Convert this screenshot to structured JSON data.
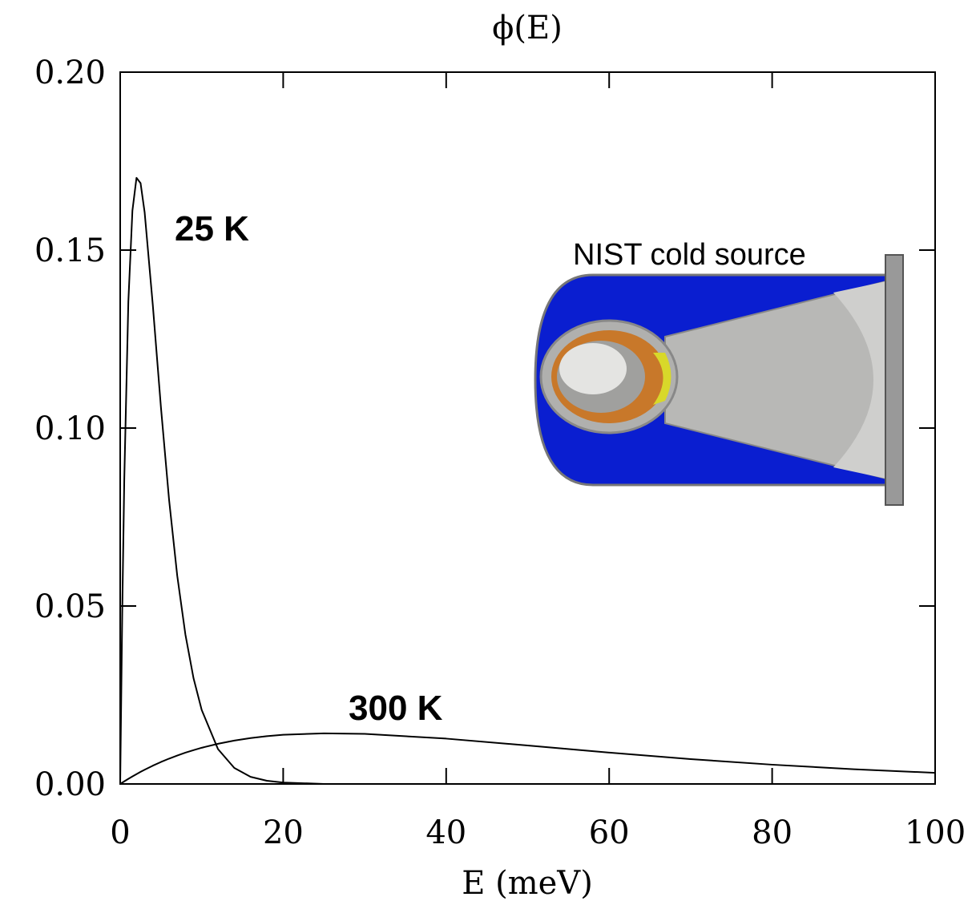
{
  "chart_data": {
    "type": "line",
    "title": "ϕ(E)",
    "x_label": "E (meV)",
    "x": [
      0,
      0.25,
      0.5,
      1,
      1.5,
      2,
      2.5,
      3,
      4,
      5,
      6,
      7,
      8,
      9,
      10,
      12,
      14,
      16,
      18,
      20,
      25,
      30,
      40,
      50,
      60,
      70,
      80,
      90,
      100
    ],
    "series": [
      {
        "name": "25 K",
        "color": "#000000",
        "values": [
          0,
          0.048,
          0.0855,
          0.1355,
          0.1611,
          0.1703,
          0.1688,
          0.1606,
          0.1346,
          0.1058,
          0.0798,
          0.0585,
          0.042,
          0.0297,
          0.0208,
          0.0098,
          0.0045,
          0.002,
          0.0009,
          0.0004,
          0.0,
          0,
          0,
          0,
          0,
          0,
          0,
          0,
          0
        ]
      },
      {
        "name": "300 K",
        "color": "#000000",
        "values": [
          0,
          0.00037,
          0.00073,
          0.00144,
          0.00212,
          0.00277,
          0.0034,
          0.004,
          0.00513,
          0.00617,
          0.00712,
          0.00799,
          0.00879,
          0.00951,
          0.01017,
          0.01129,
          0.01219,
          0.0129,
          0.01343,
          0.01381,
          0.01423,
          0.01407,
          0.01274,
          0.01081,
          0.00882,
          0.00698,
          0.00542,
          0.00414,
          0.00313
        ]
      }
    ],
    "xlim": [
      0,
      100
    ],
    "xticks": [
      0,
      20,
      40,
      60,
      80,
      100
    ],
    "ylim": [
      0,
      0.2
    ],
    "yticks": [
      {
        "value": 0,
        "label": "0.00"
      },
      {
        "value": 0.05,
        "label": "0.05"
      },
      {
        "value": 0.1,
        "label": "0.10"
      },
      {
        "value": 0.15,
        "label": "0.15"
      },
      {
        "value": 0.2,
        "label": "0.20"
      }
    ],
    "inset_label": "NIST cold source"
  }
}
